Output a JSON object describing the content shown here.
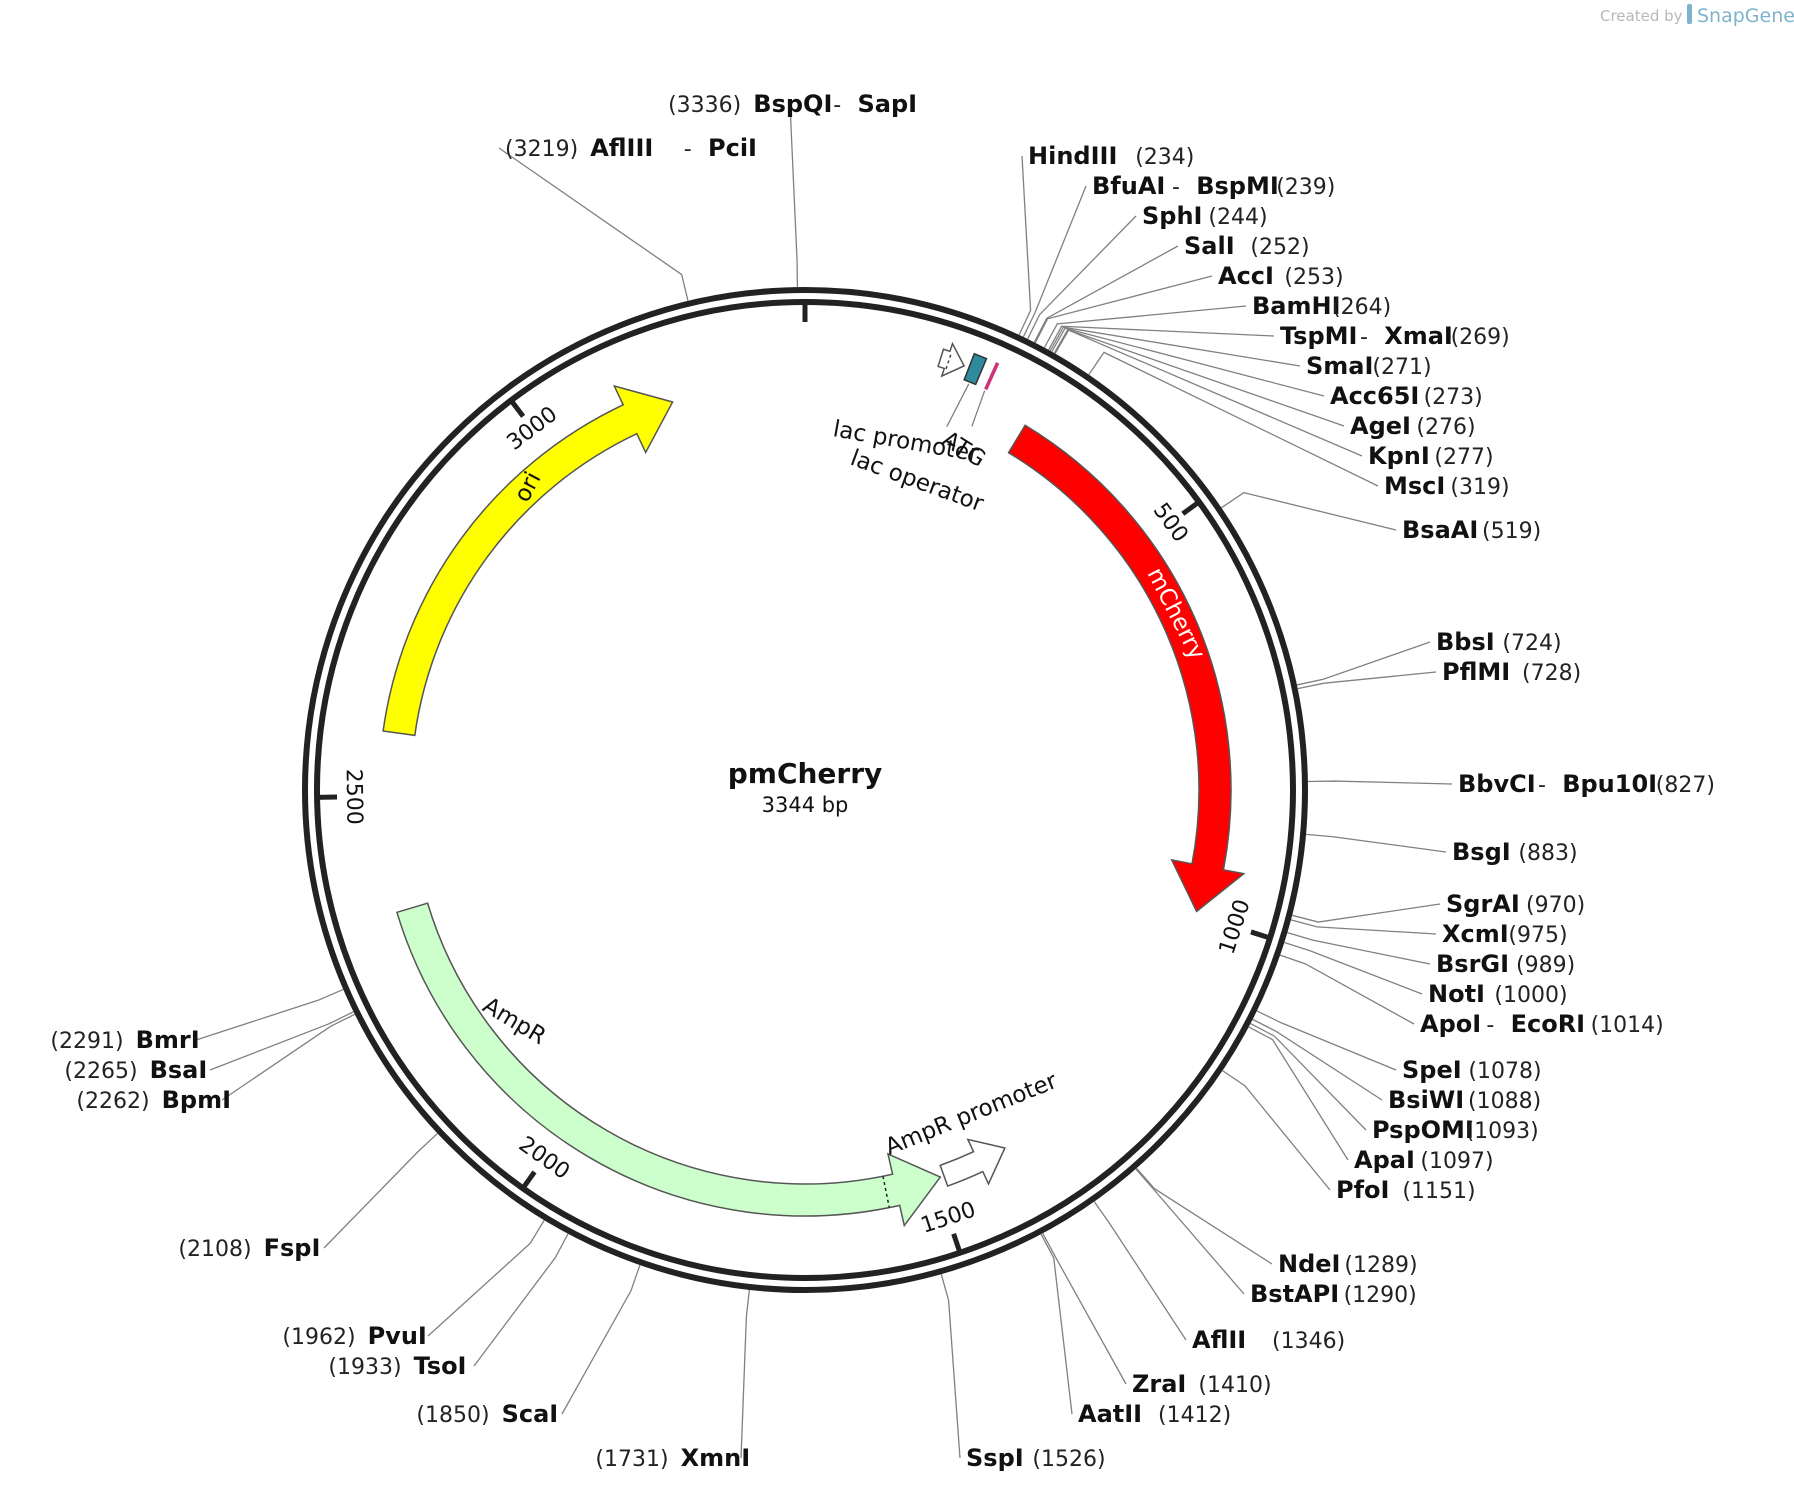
{
  "credit": {
    "prefix": "Created by",
    "brand": "SnapGene"
  },
  "plasmid": {
    "name": "pmCherry",
    "length_label": "3344 bp",
    "length": 3344
  },
  "ticks": [
    {
      "pos": 500,
      "label": "500"
    },
    {
      "pos": 1000,
      "label": "1000"
    },
    {
      "pos": 1500,
      "label": "1500"
    },
    {
      "pos": 2000,
      "label": "2000"
    },
    {
      "pos": 2500,
      "label": "2500"
    },
    {
      "pos": 3000,
      "label": "3000"
    }
  ],
  "features": [
    {
      "name": "ori",
      "color": "#ffff00",
      "stroke": "#555555",
      "start": 2582,
      "end": 3169,
      "direction": "cw",
      "type": "ori"
    },
    {
      "name": "mCherry",
      "color": "#ff0000",
      "stroke": "#555555",
      "start": 289,
      "end": 996,
      "direction": "cw",
      "type": "cds"
    },
    {
      "name": "AmpR",
      "color": "#ccffcc",
      "stroke": "#555555",
      "start": 1493,
      "end": 2353,
      "direction": "ccw",
      "type": "cds"
    },
    {
      "name": "AmpR promoter",
      "color": "#ffffff",
      "stroke": "#555555",
      "type": "promoter"
    },
    {
      "name": "lac promoter",
      "color": "#ffffff",
      "stroke": "#555555",
      "type": "promoter"
    },
    {
      "name": "lac operator",
      "color": "#2e8b9c",
      "stroke": "#333333",
      "type": "operator"
    },
    {
      "name": "ATG",
      "color": "#cc3377",
      "stroke": "#cc3377",
      "type": "atg"
    }
  ],
  "sites": [
    {
      "num": "(3336)",
      "names": [
        "BspQI",
        "SapI"
      ]
    },
    {
      "num": "(3219)",
      "names": [
        "AflIII",
        "PciI"
      ]
    },
    {
      "num": "(234)",
      "names": [
        "HindIII"
      ]
    },
    {
      "num": "(239)",
      "names": [
        "BfuAI",
        "BspMI"
      ]
    },
    {
      "num": "(244)",
      "names": [
        "SphI"
      ]
    },
    {
      "num": "(252)",
      "names": [
        "SalI"
      ]
    },
    {
      "num": "(253)",
      "names": [
        "AccI"
      ]
    },
    {
      "num": "(264)",
      "names": [
        "BamHI"
      ]
    },
    {
      "num": "(269)",
      "names": [
        "TspMI",
        "XmaI"
      ]
    },
    {
      "num": "(271)",
      "names": [
        "SmaI"
      ]
    },
    {
      "num": "(273)",
      "names": [
        "Acc65I"
      ]
    },
    {
      "num": "(276)",
      "names": [
        "AgeI"
      ]
    },
    {
      "num": "(277)",
      "names": [
        "KpnI"
      ]
    },
    {
      "num": "(319)",
      "names": [
        "MscI"
      ]
    },
    {
      "num": "(519)",
      "names": [
        "BsaAI"
      ]
    },
    {
      "num": "(724)",
      "names": [
        "BbsI"
      ]
    },
    {
      "num": "(728)",
      "names": [
        "PflMI"
      ]
    },
    {
      "num": "(827)",
      "names": [
        "BbvCI",
        "Bpu10I"
      ]
    },
    {
      "num": "(883)",
      "names": [
        "BsgI"
      ]
    },
    {
      "num": "(970)",
      "names": [
        "SgrAI"
      ]
    },
    {
      "num": "(975)",
      "names": [
        "XcmI"
      ]
    },
    {
      "num": "(989)",
      "names": [
        "BsrGI"
      ]
    },
    {
      "num": "(1000)",
      "names": [
        "NotI"
      ]
    },
    {
      "num": "(1014)",
      "names": [
        "ApoI",
        "EcoRI"
      ]
    },
    {
      "num": "(1078)",
      "names": [
        "SpeI"
      ]
    },
    {
      "num": "(1088)",
      "names": [
        "BsiWI"
      ]
    },
    {
      "num": "(1093)",
      "names": [
        "PspOMI"
      ]
    },
    {
      "num": "(1097)",
      "names": [
        "ApaI"
      ]
    },
    {
      "num": "(1151)",
      "names": [
        "PfoI"
      ]
    },
    {
      "num": "(1289)",
      "names": [
        "NdeI"
      ]
    },
    {
      "num": "(1290)",
      "names": [
        "BstAPI"
      ]
    },
    {
      "num": "(1346)",
      "names": [
        "AflII"
      ]
    },
    {
      "num": "(1410)",
      "names": [
        "ZraI"
      ]
    },
    {
      "num": "(1412)",
      "names": [
        "AatII"
      ]
    },
    {
      "num": "(1526)",
      "names": [
        "SspI"
      ]
    },
    {
      "num": "(1731)",
      "names": [
        "XmnI"
      ]
    },
    {
      "num": "(1850)",
      "names": [
        "ScaI"
      ]
    },
    {
      "num": "(1933)",
      "names": [
        "TsoI"
      ]
    },
    {
      "num": "(1962)",
      "names": [
        "PvuI"
      ]
    },
    {
      "num": "(2108)",
      "names": [
        "FspI"
      ]
    },
    {
      "num": "(2262)",
      "names": [
        "BpmI"
      ]
    },
    {
      "num": "(2265)",
      "names": [
        "BsaI"
      ]
    },
    {
      "num": "(2291)",
      "names": [
        "BmrI"
      ]
    }
  ]
}
